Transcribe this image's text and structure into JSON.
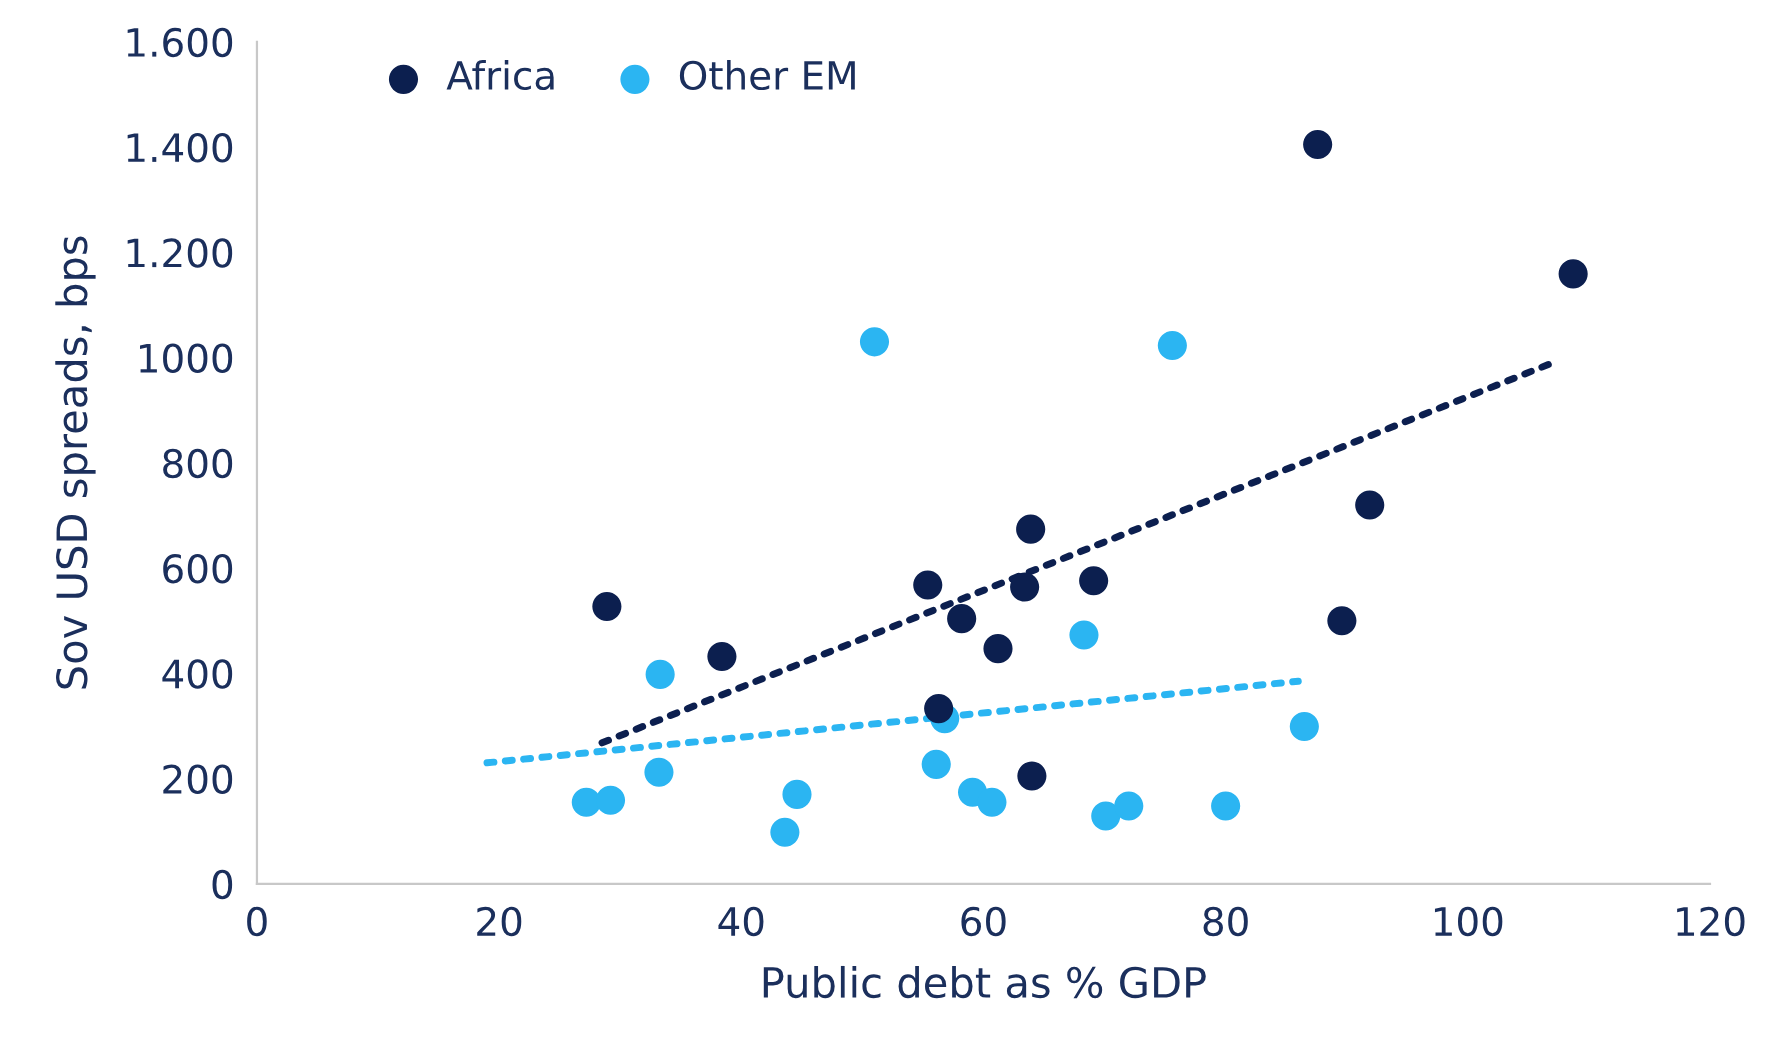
{
  "chart_data": {
    "type": "scatter",
    "xlabel": "Public debt as % GDP",
    "ylabel": "Sov USD spreads, bps",
    "xlim": [
      0,
      120
    ],
    "xticks": [
      0,
      20,
      40,
      60,
      80,
      100,
      120
    ],
    "ylim": [
      0,
      1600
    ],
    "yticks": [
      0,
      200,
      400,
      600,
      800,
      1000,
      {
        "value": 1200,
        "label": "1.200"
      },
      {
        "value": 1400,
        "label": "1.400"
      },
      {
        "value": 1600,
        "label": "1.600"
      }
    ],
    "grid": false,
    "legend": "top left",
    "series": [
      {
        "name": "Africa",
        "marker": "circle",
        "color": "#0c1f4f",
        "x": [
          28.9,
          38.4,
          55.4,
          56.3,
          58.2,
          61.2,
          63.4,
          63.9,
          64.0,
          69.1,
          87.6,
          89.6,
          91.9,
          108.7
        ],
        "values": [
          527,
          432,
          568,
          333,
          504,
          447,
          564,
          674,
          205,
          576,
          1405,
          500,
          720,
          1159
        ]
      },
      {
        "name": "Other EM",
        "marker": "circle",
        "color": "#2bb5f2",
        "x": [
          27.2,
          29.2,
          33.3,
          33.2,
          43.6,
          44.6,
          51.0,
          56.1,
          56.8,
          59.1,
          60.7,
          70.1,
          72.0,
          68.3,
          75.6,
          80.0,
          86.5
        ],
        "values": [
          155,
          159,
          398,
          212,
          98,
          170,
          1030,
          227,
          314,
          174,
          155,
          129,
          148,
          473,
          1023,
          148,
          299
        ]
      },
      {
        "type": "line",
        "marker": "none",
        "line_style": "dotted",
        "color": "#0c1f4f",
        "x": [
          28.5,
          107
        ],
        "values": [
          268,
          990
        ]
      },
      {
        "type": "line",
        "marker": "none",
        "line_style": "dotted",
        "color": "#2bb5f2",
        "x": [
          19,
          86
        ],
        "values": [
          230,
          385
        ]
      }
    ]
  }
}
